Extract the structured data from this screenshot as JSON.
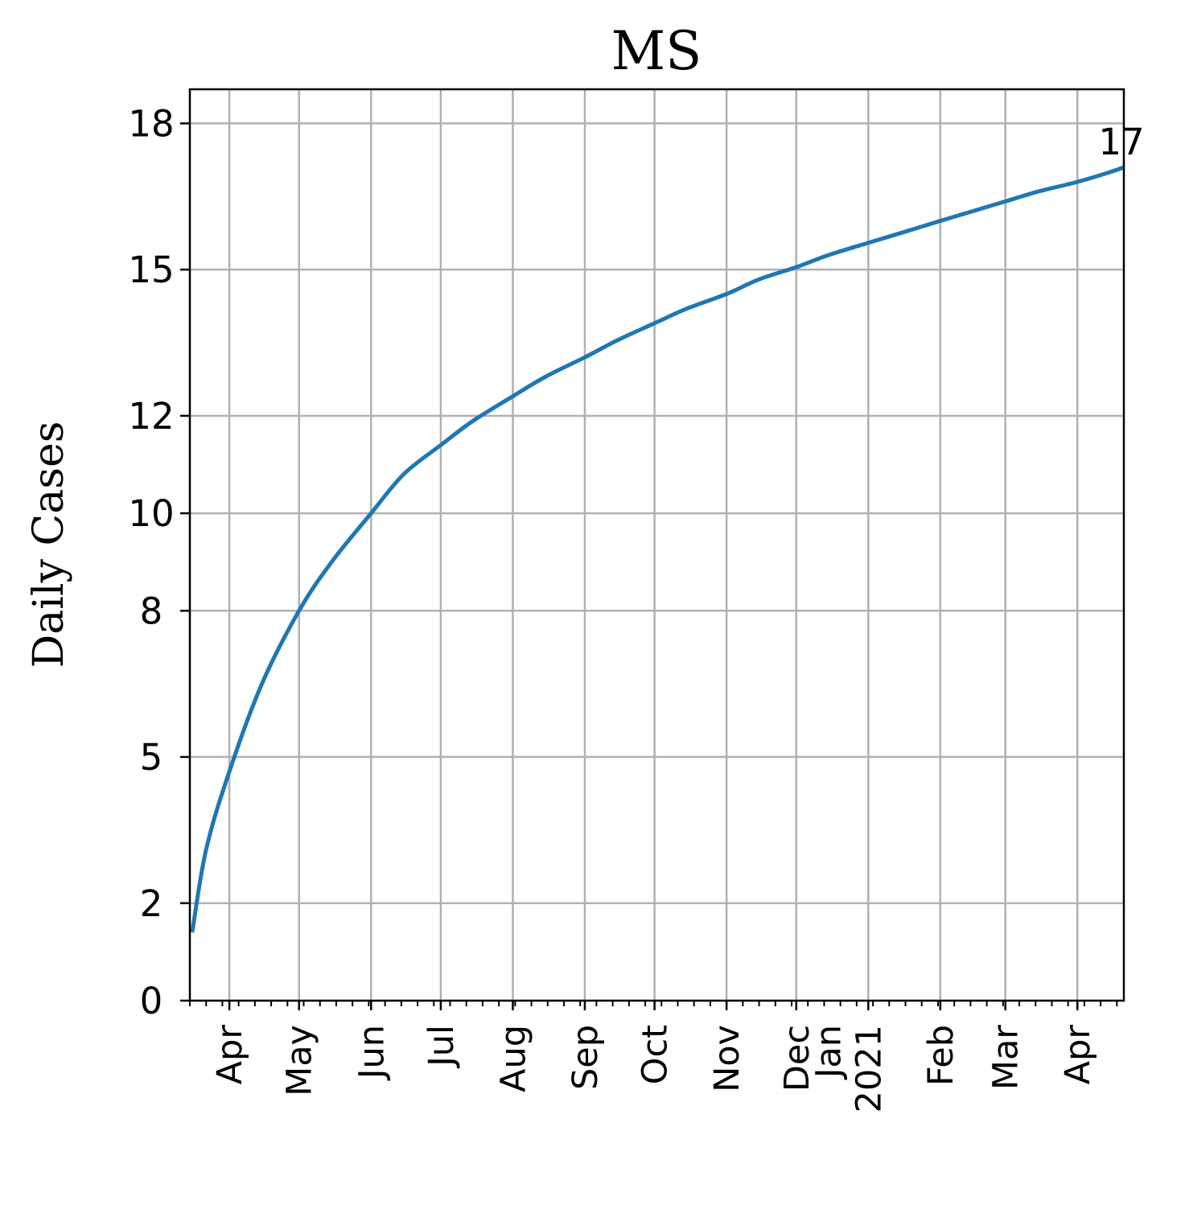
{
  "chart_data": {
    "type": "line",
    "title": "MS",
    "xlabel": "",
    "ylabel": "Daily Cases",
    "ylim": [
      0,
      18.7
    ],
    "xlim": [
      "2020-03-15",
      "2021-04-21"
    ],
    "grid": true,
    "y_ticks": [
      0,
      2,
      5,
      8,
      10,
      12,
      15,
      18
    ],
    "x_ticks": [
      {
        "date": "2020-04-01",
        "label": "Apr"
      },
      {
        "date": "2020-05-01",
        "label": "May"
      },
      {
        "date": "2020-06-01",
        "label": "Jun"
      },
      {
        "date": "2020-07-01",
        "label": "Jul"
      },
      {
        "date": "2020-08-01",
        "label": "Aug"
      },
      {
        "date": "2020-09-01",
        "label": "Sep"
      },
      {
        "date": "2020-10-01",
        "label": "Oct"
      },
      {
        "date": "2020-11-01",
        "label": "Nov"
      },
      {
        "date": "2020-12-01",
        "label": "Dec"
      },
      {
        "date": "2021-01-01",
        "label": "Jan\n2021"
      },
      {
        "date": "2021-02-01",
        "label": "Feb"
      },
      {
        "date": "2021-03-01",
        "label": "Mar"
      },
      {
        "date": "2021-04-01",
        "label": "Apr"
      }
    ],
    "series": [
      {
        "color": "#1f77b4",
        "x": [
          "2020-03-16",
          "2020-03-22",
          "2020-04-01",
          "2020-04-15",
          "2020-05-01",
          "2020-05-15",
          "2020-06-01",
          "2020-06-15",
          "2020-07-01",
          "2020-07-15",
          "2020-08-01",
          "2020-08-15",
          "2020-09-01",
          "2020-09-15",
          "2020-10-01",
          "2020-10-15",
          "2020-11-01",
          "2020-11-15",
          "2020-12-01",
          "2020-12-15",
          "2021-01-01",
          "2021-01-15",
          "2021-02-01",
          "2021-02-15",
          "2021-03-01",
          "2021-03-15",
          "2021-04-01",
          "2021-04-15",
          "2021-04-21"
        ],
        "y": [
          1.4,
          3.1,
          4.7,
          6.5,
          8.0,
          9.0,
          10.0,
          10.8,
          11.4,
          11.9,
          12.4,
          12.8,
          13.2,
          13.55,
          13.9,
          14.2,
          14.5,
          14.8,
          15.05,
          15.3,
          15.55,
          15.75,
          16.0,
          16.2,
          16.4,
          16.6,
          16.8,
          17.0,
          17.1
        ]
      }
    ],
    "annotations": [
      {
        "text": "17",
        "date": "2021-04-21",
        "value": 17.1
      }
    ]
  }
}
